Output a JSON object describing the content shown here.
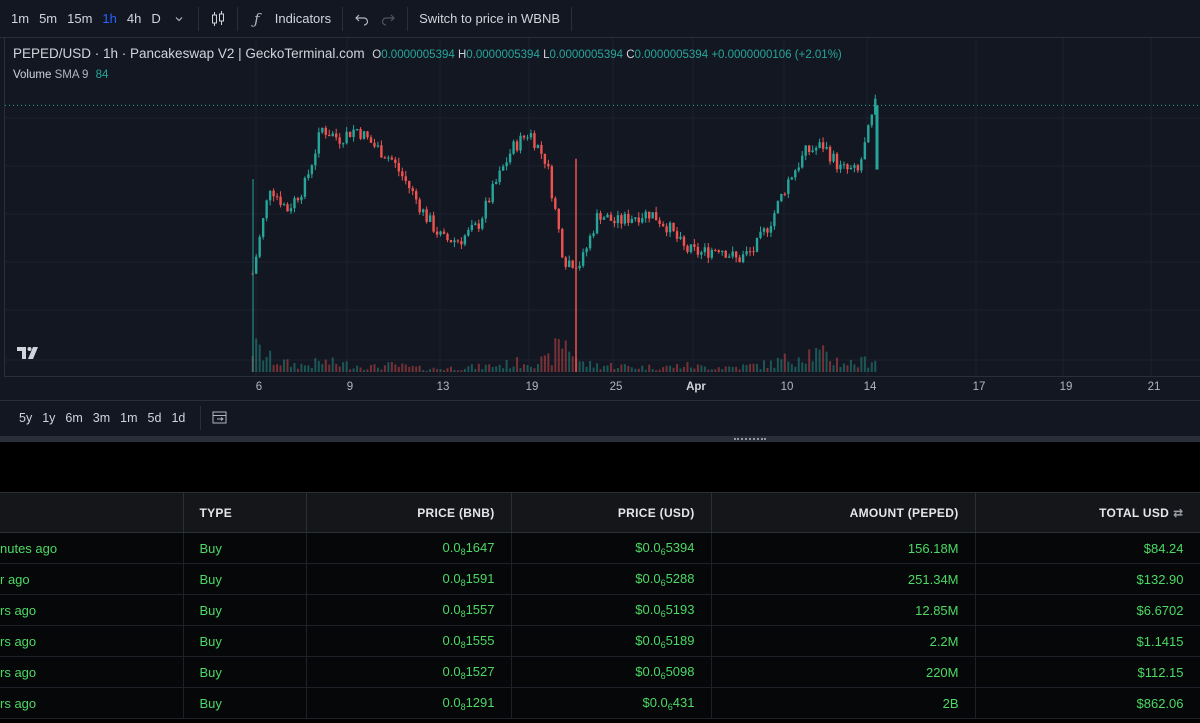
{
  "toolbar": {
    "timeframes": [
      "1m",
      "5m",
      "15m",
      "1h",
      "4h",
      "D"
    ],
    "active_timeframe": "1h",
    "indicators_label": "Indicators",
    "switch_label": "Switch to price in WBNB"
  },
  "legend": {
    "symbol": "PEPED/USD · 1h · Pancakeswap V2 | GeckoTerminal.com",
    "o_label": "O",
    "o_value": "0.0000005394",
    "h_label": "H",
    "h_value": "0.0000005394",
    "l_label": "L",
    "l_value": "0.0000005394",
    "c_label": "C",
    "c_value": "0.0000005394",
    "change": "+0.0000000106 (+2.01%)",
    "volume_label": "Volume",
    "sma_label": "SMA 9",
    "volume_value": "84"
  },
  "time_axis": {
    "ticks": [
      "6",
      "9",
      "13",
      "19",
      "25",
      "Apr",
      "10",
      "14",
      "17",
      "19",
      "21"
    ]
  },
  "range_bar": {
    "ranges": [
      "5y",
      "1y",
      "6m",
      "3m",
      "1m",
      "5d",
      "1d"
    ]
  },
  "colors": {
    "up": "#26a69a",
    "down": "#ef5350",
    "buy": "#4cd964",
    "active": "#2962ff"
  },
  "chart_data": {
    "type": "line",
    "title": "PEPED/USD · 1h · Pancakeswap V2 | GeckoTerminal.com",
    "xlabel": "",
    "ylabel": "",
    "x_ticks": [
      "6",
      "9",
      "13",
      "19",
      "25",
      "Apr",
      "10",
      "14",
      "17",
      "19",
      "21"
    ],
    "series": [
      {
        "values": [
          2.9e-07,
          4.2e-07,
          3.85e-07,
          4.2e-07,
          5.05e-07,
          4.9e-07,
          5.05e-07,
          4.8e-07,
          4.6e-07,
          4.2e-07,
          3.75e-07,
          3.4e-07,
          3.4e-07,
          3.6e-07,
          4.2e-07,
          4.75e-07,
          5e-07,
          4.55e-07,
          3.1e-07,
          3.05e-07,
          3.8e-07,
          3.65e-07,
          3.75e-07,
          3.8e-07,
          3.6e-07,
          3.25e-07,
          3.2e-07,
          3.3e-07,
          3.1e-07,
          3.25e-07,
          3.7e-07,
          4.3e-07,
          4.7e-07,
          4.8e-07,
          4.45e-07,
          4.4e-07,
          5.39e-07
        ]
      },
      {
        "values": [
          15,
          8,
          5,
          4,
          6,
          5,
          4,
          3,
          4,
          3,
          2,
          2,
          3,
          3,
          4,
          5,
          7,
          6,
          20,
          5,
          4,
          4,
          3,
          3,
          3,
          4,
          3,
          3,
          3,
          4,
          5,
          8,
          12,
          10,
          6,
          5,
          9
        ]
      }
    ]
  },
  "trades": {
    "headers": {
      "time": "",
      "type": "TYPE",
      "price_bnb": "PRICE (BNB)",
      "price_usd": "PRICE (USD)",
      "amount": "AMOUNT (PEPED)",
      "total": "TOTAL USD"
    },
    "rows": [
      {
        "time": "nutes ago",
        "type": "Buy",
        "bnb_pre": "0.0",
        "bnb_sub": "8",
        "bnb_post": "1647",
        "usd_pre": "$0.0",
        "usd_sub": "6",
        "usd_post": "5394",
        "amount": "156.18M",
        "total": "$84.24"
      },
      {
        "time": "r ago",
        "type": "Buy",
        "bnb_pre": "0.0",
        "bnb_sub": "8",
        "bnb_post": "1591",
        "usd_pre": "$0.0",
        "usd_sub": "6",
        "usd_post": "5288",
        "amount": "251.34M",
        "total": "$132.90"
      },
      {
        "time": "rs ago",
        "type": "Buy",
        "bnb_pre": "0.0",
        "bnb_sub": "8",
        "bnb_post": "1557",
        "usd_pre": "$0.0",
        "usd_sub": "6",
        "usd_post": "5193",
        "amount": "12.85M",
        "total": "$6.6702"
      },
      {
        "time": "rs ago",
        "type": "Buy",
        "bnb_pre": "0.0",
        "bnb_sub": "8",
        "bnb_post": "1555",
        "usd_pre": "$0.0",
        "usd_sub": "6",
        "usd_post": "5189",
        "amount": "2.2M",
        "total": "$1.1415"
      },
      {
        "time": "rs ago",
        "type": "Buy",
        "bnb_pre": "0.0",
        "bnb_sub": "8",
        "bnb_post": "1527",
        "usd_pre": "$0.0",
        "usd_sub": "6",
        "usd_post": "5098",
        "amount": "220M",
        "total": "$112.15"
      },
      {
        "time": "rs ago",
        "type": "Buy",
        "bnb_pre": "0.0",
        "bnb_sub": "8",
        "bnb_post": "1291",
        "usd_pre": "$0.0",
        "usd_sub": "6",
        "usd_post": "431",
        "amount": "2B",
        "total": "$862.06"
      }
    ]
  }
}
